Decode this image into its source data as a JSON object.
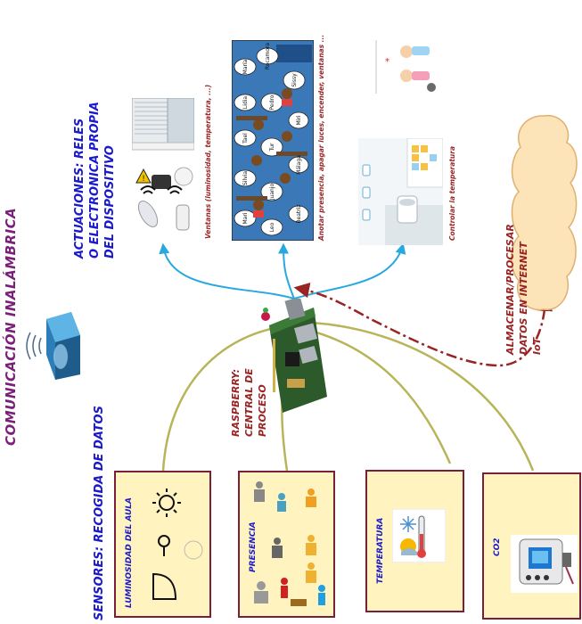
{
  "titles": {
    "wireless": "COMUNICACIÓN INALÁMBRICA",
    "sensors": "SENSORES: RECOGIDA DE DATOS",
    "actuators_line1": "ACTUACIONES: RELES",
    "actuators_line2": "O ELECTRONICA PROPIA",
    "actuators_line3": "DEL DISPOSITIVO"
  },
  "raspberry": {
    "line1": "RASPBERRY:",
    "line2": "CENTRAL DE",
    "line3": "PROCESO"
  },
  "cloud": {
    "line1": "ALMACENAR/PROCESAR",
    "line2": "DATOS EN INTERNET",
    "line3": "IoT"
  },
  "sensor_boxes": [
    {
      "label": "LUMINOSIDAD DEL AULA"
    },
    {
      "label": "PRESENCIA"
    },
    {
      "label": "TEMPERATURA"
    },
    {
      "label": "CO2"
    }
  ],
  "actuation_captions": {
    "windows": "Ventanas (luminosidad, temperatura, ...)",
    "classroom": "Anotar presencia, apagar luces, encender, ventanas ...",
    "climate": "Controlar la temperatura"
  },
  "classroom_names": [
    "María",
    "Rocamora",
    "Sissy",
    "Lidia",
    "Pedro",
    "Miri",
    "Tael",
    "Tur",
    "Málaga",
    "Silvia",
    "Juanjo",
    "Mari",
    "Leo",
    "Beatriz"
  ],
  "colors": {
    "purple": "#7a1f7a",
    "blue": "#1a1acc",
    "dark_red": "#9a2424",
    "olive_line": "#b8b45a",
    "cyan_arrow": "#29a8e0",
    "cloud_fill": "#fde3b8",
    "cloud_stroke": "#e0b070",
    "box_fill": "#fff3c0",
    "box_border": "#7a1f3a"
  }
}
